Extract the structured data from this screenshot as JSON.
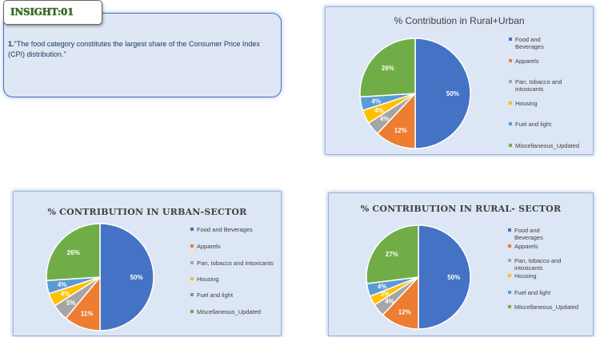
{
  "insight": {
    "heading": "INSIGHT:01",
    "number": "1.",
    "text": "\"The food category constitutes the largest share of the Consumer Price Index (CPI) distribution.\""
  },
  "colors": {
    "food": "#4472c4",
    "apparels": "#ed7d31",
    "pan": "#a5a5a5",
    "housing": "#ffc000",
    "fuel": "#5b9bd5",
    "misc": "#70ad47"
  },
  "chart_data": [
    {
      "type": "pie",
      "title": "% Contribution in Rural+Urban",
      "categories": [
        "Food and Beverages",
        "Apparels",
        "Pan, tobacco and intoxicants",
        "Housing",
        "Fuel and light",
        "Miscellaneous_Updated"
      ],
      "values": [
        50,
        12,
        4,
        4,
        4,
        26
      ],
      "data_labels": [
        "50%",
        "12%",
        "4%",
        "4%",
        "4%",
        "26%"
      ],
      "legend": "right"
    },
    {
      "type": "pie",
      "title": "% CONTRIBUTION IN  URBAN-SECTOR",
      "categories": [
        "Food and Beverages",
        "Apparels",
        "Pan, tobacco and intoxicants",
        "Housing",
        "Fuel and light",
        "Miscellaneous_Updated"
      ],
      "values": [
        50,
        11,
        5,
        4,
        4,
        26
      ],
      "data_labels": [
        "50%",
        "11%",
        "5%",
        "4%",
        "4%",
        "26%"
      ],
      "legend": "right"
    },
    {
      "type": "pie",
      "title": "% CONTRIBUTION IN RURAL- SECTOR",
      "categories": [
        "Food and Beverages",
        "Apparels",
        "Pan, tobacco and intoxicants",
        "Housing",
        "Fuel and light",
        "Miscellaneous_Updated"
      ],
      "values": [
        50,
        12,
        4,
        3,
        4,
        27
      ],
      "data_labels": [
        "50%",
        "12%",
        "4%",
        "3%",
        "4%",
        "27%"
      ],
      "legend": "right"
    }
  ]
}
